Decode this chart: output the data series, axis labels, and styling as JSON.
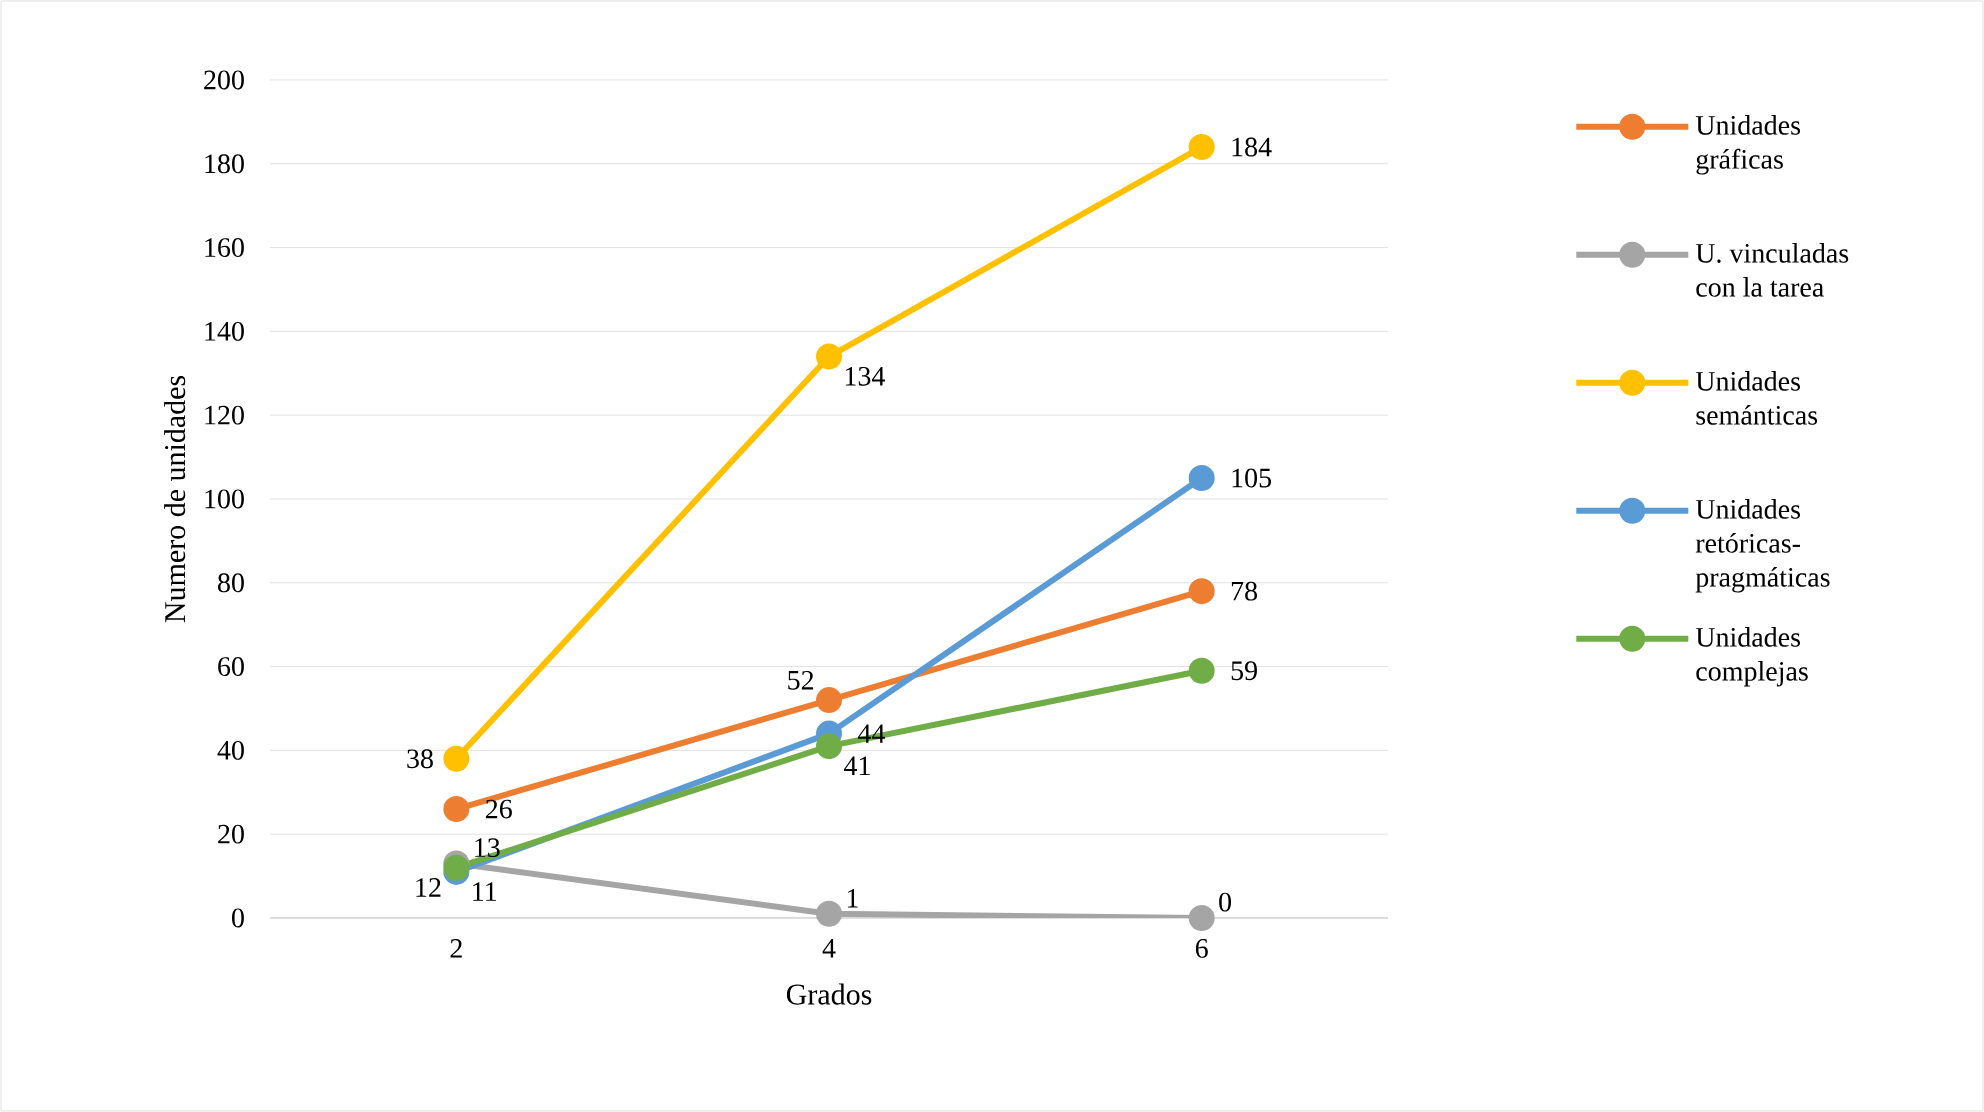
{
  "chart_data": {
    "type": "line",
    "xlabel": "Grados",
    "ylabel": "Numero de unidades",
    "categories": [
      "2",
      "4",
      "6"
    ],
    "series": [
      {
        "name": "Unidades gráficas",
        "color": "#ed7d31",
        "values": [
          26,
          52,
          78
        ]
      },
      {
        "name": "U. vinculadas con la tarea",
        "color": "#a5a5a5",
        "values": [
          13,
          1,
          0
        ]
      },
      {
        "name": "Unidades semánticas",
        "color": "#ffc000",
        "values": [
          38,
          134,
          184
        ]
      },
      {
        "name": "Unidades retóricas-pragmáticas",
        "color": "#5b9bd5",
        "values": [
          11,
          44,
          105
        ]
      },
      {
        "name": "Unidades complejas",
        "color": "#70ad47",
        "values": [
          12,
          41,
          59
        ]
      }
    ],
    "ylim": [
      0,
      200
    ],
    "yticks": [
      0,
      20,
      40,
      60,
      80,
      100,
      120,
      140,
      160,
      180,
      200
    ],
    "grid": "y",
    "legend": "right",
    "marker": "circle",
    "data_labels": true
  }
}
